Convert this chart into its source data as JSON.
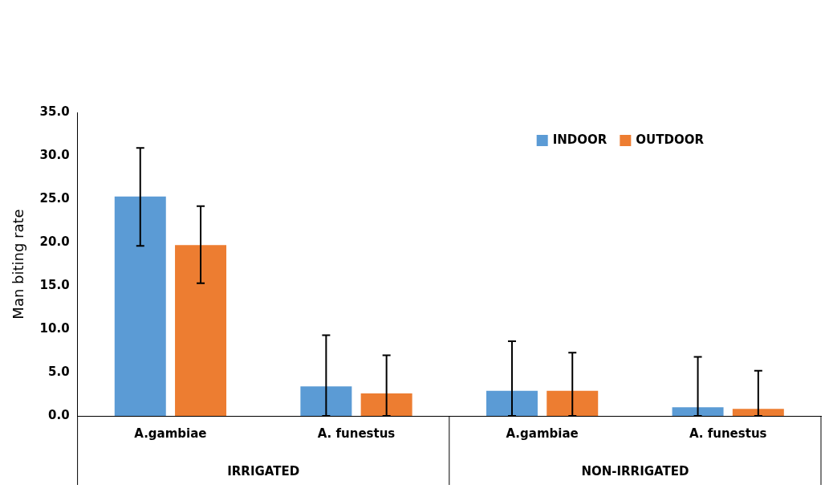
{
  "chart_data": {
    "type": "bar",
    "ylabel": "Man biting rate",
    "categories": [
      "A.gambiae",
      "A. funestus",
      "A.gambiae",
      "A. funestus"
    ],
    "annotations": [
      "IRRIGATED",
      "NON-IRRIGATED"
    ],
    "series": [
      {
        "name": "INDOOR",
        "color": "#5b9bd5",
        "values": [
          25.3,
          3.4,
          2.9,
          1.0
        ],
        "errors": [
          [
            19.6,
            30.9
          ],
          [
            0,
            9.3
          ],
          [
            0,
            8.6
          ],
          [
            0,
            6.8
          ]
        ]
      },
      {
        "name": "OUTDOOR",
        "color": "#ed7d31",
        "values": [
          19.7,
          2.6,
          2.9,
          0.8
        ],
        "errors": [
          [
            15.3,
            24.2
          ],
          [
            0,
            7.0
          ],
          [
            0,
            7.3
          ],
          [
            0,
            5.2
          ]
        ]
      }
    ],
    "ylim": [
      0,
      35
    ],
    "yticks": [
      {
        "value": 0,
        "label": "0.0"
      },
      {
        "value": 5,
        "label": "5.0"
      },
      {
        "value": 10,
        "label": "10.0"
      },
      {
        "value": 15,
        "label": "15.0"
      },
      {
        "value": 20,
        "label": "20.0"
      },
      {
        "value": 25,
        "label": "25.0"
      },
      {
        "value": 30,
        "label": "30.0"
      },
      {
        "value": 35,
        "label": "35.0"
      }
    ],
    "grid": false,
    "legend": "top right"
  }
}
